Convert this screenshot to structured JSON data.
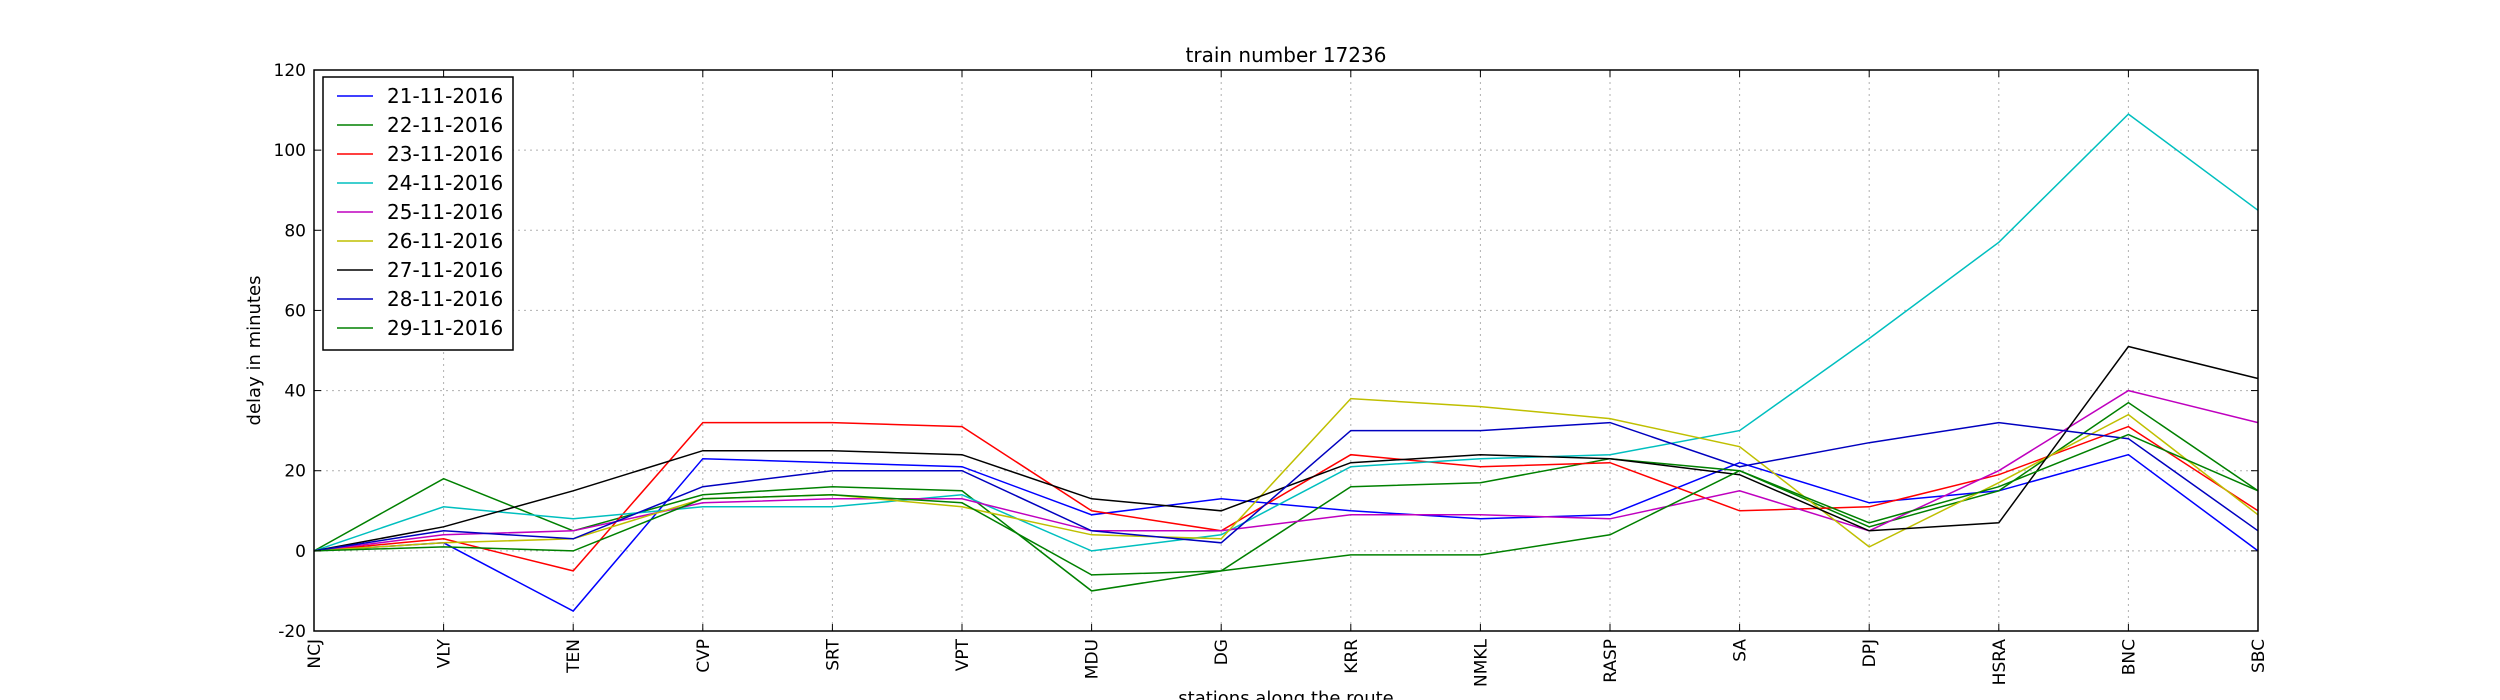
{
  "chart_data": {
    "type": "line",
    "title": "train number 17236",
    "xlabel": "stations along the route",
    "ylabel": "delay in minutes",
    "categories": [
      "NCJ",
      "VLY",
      "TEN",
      "CVP",
      "SRT",
      "VPT",
      "MDU",
      "DG",
      "KRR",
      "NMKL",
      "RASP",
      "SA",
      "DPJ",
      "HSRA",
      "BNC",
      "SBC"
    ],
    "ylim": [
      -20,
      120
    ],
    "yticks": [
      -20,
      0,
      20,
      40,
      60,
      80,
      100,
      120
    ],
    "grid": true,
    "legend_position": "top-left",
    "series": [
      {
        "name": "21-11-2016",
        "color": "#0000ff",
        "values": [
          0,
          2,
          -15,
          23,
          22,
          21,
          9,
          13,
          10,
          8,
          9,
          22,
          12,
          15,
          24,
          0
        ]
      },
      {
        "name": "22-11-2016",
        "color": "#008000",
        "values": [
          0,
          18,
          5,
          14,
          16,
          15,
          -10,
          -5,
          16,
          17,
          23,
          20,
          6,
          15,
          37,
          15
        ]
      },
      {
        "name": "23-11-2016",
        "color": "#ff0000",
        "values": [
          0,
          3,
          -5,
          32,
          32,
          31,
          10,
          5,
          24,
          21,
          22,
          10,
          11,
          19,
          31,
          10
        ]
      },
      {
        "name": "24-11-2016",
        "color": "#00bfbf",
        "values": [
          0,
          11,
          8,
          11,
          11,
          14,
          0,
          4,
          21,
          23,
          24,
          30,
          53,
          77,
          109,
          85
        ]
      },
      {
        "name": "25-11-2016",
        "color": "#bf00bf",
        "values": [
          0,
          4,
          5,
          12,
          13,
          13,
          5,
          5,
          9,
          9,
          8,
          15,
          5,
          20,
          40,
          32
        ]
      },
      {
        "name": "26-11-2016",
        "color": "#bfbf00",
        "values": [
          0,
          2,
          3,
          13,
          14,
          11,
          4,
          3,
          38,
          36,
          33,
          26,
          1,
          17,
          34,
          9
        ]
      },
      {
        "name": "27-11-2016",
        "color": "#000000",
        "values": [
          0,
          6,
          15,
          25,
          25,
          24,
          13,
          10,
          22,
          24,
          23,
          19,
          5,
          7,
          51,
          43
        ]
      },
      {
        "name": "28-11-2016",
        "color": "#0000bf",
        "values": [
          0,
          5,
          3,
          16,
          20,
          20,
          5,
          2,
          30,
          30,
          32,
          21,
          27,
          32,
          28,
          5
        ]
      },
      {
        "name": "29-11-2016",
        "color": "#008000",
        "values": [
          0,
          1,
          0,
          13,
          14,
          12,
          -6,
          -5,
          -1,
          -1,
          4,
          20,
          7,
          16,
          29,
          15
        ]
      }
    ]
  }
}
